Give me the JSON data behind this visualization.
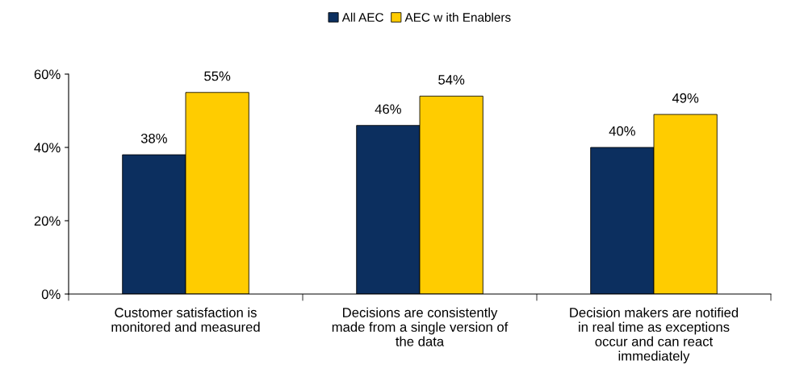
{
  "chart_data": {
    "type": "bar",
    "categories": [
      "Customer satisfaction is monitored and measured",
      "Decisions are consistently made from a single version of the data",
      "Decision makers are notified in real time as exceptions occur and can react immediately"
    ],
    "series": [
      {
        "name": "All AEC",
        "color": "#0c2f5f",
        "values": [
          38,
          46,
          40
        ],
        "value_labels": [
          "38%",
          "46%",
          "40%"
        ]
      },
      {
        "name": "AEC w ith Enablers",
        "color": "#ffcc00",
        "values": [
          55,
          54,
          49
        ],
        "value_labels": [
          "55%",
          "54%",
          "49%"
        ]
      }
    ],
    "ylim": [
      0,
      60
    ],
    "yticks": [
      {
        "value": 0,
        "label": "0%"
      },
      {
        "value": 20,
        "label": "20%"
      },
      {
        "value": 40,
        "label": "40%"
      },
      {
        "value": 60,
        "label": "60%"
      }
    ],
    "grid": false,
    "legend": "top"
  }
}
